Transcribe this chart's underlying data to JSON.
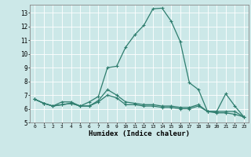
{
  "title": "",
  "xlabel": "Humidex (Indice chaleur)",
  "ylabel": "",
  "bg_color": "#cce8e8",
  "line_color": "#2e7d6e",
  "grid_color": "#ffffff",
  "xlim": [
    -0.5,
    23.5
  ],
  "ylim": [
    5,
    13.6
  ],
  "yticks": [
    5,
    6,
    7,
    8,
    9,
    10,
    11,
    12,
    13
  ],
  "xticks": [
    0,
    1,
    2,
    3,
    4,
    5,
    6,
    7,
    8,
    9,
    10,
    11,
    12,
    13,
    14,
    15,
    16,
    17,
    18,
    19,
    20,
    21,
    22,
    23
  ],
  "line1_x": [
    0,
    1,
    2,
    3,
    4,
    5,
    6,
    7,
    8,
    9,
    10,
    11,
    12,
    13,
    14,
    15,
    16,
    17,
    18,
    19,
    20,
    21,
    22,
    23
  ],
  "line1_y": [
    6.7,
    6.4,
    6.2,
    6.5,
    6.5,
    6.2,
    6.5,
    6.9,
    9.0,
    9.1,
    10.5,
    11.4,
    12.1,
    13.3,
    13.35,
    12.4,
    10.9,
    7.9,
    7.4,
    5.8,
    5.8,
    7.1,
    6.2,
    5.4
  ],
  "line2_x": [
    0,
    1,
    2,
    3,
    4,
    5,
    6,
    7,
    8,
    9,
    10,
    11,
    12,
    13,
    14,
    15,
    16,
    17,
    18,
    19,
    20,
    21,
    22,
    23
  ],
  "line2_y": [
    6.7,
    6.4,
    6.2,
    6.3,
    6.4,
    6.2,
    6.2,
    6.6,
    7.4,
    7.0,
    6.5,
    6.4,
    6.3,
    6.3,
    6.2,
    6.2,
    6.1,
    6.1,
    6.3,
    5.8,
    5.8,
    5.8,
    5.8,
    5.4
  ],
  "line3_x": [
    0,
    1,
    2,
    3,
    4,
    5,
    6,
    7,
    8,
    9,
    10,
    11,
    12,
    13,
    14,
    15,
    16,
    17,
    18,
    19,
    20,
    21,
    22,
    23
  ],
  "line3_y": [
    6.7,
    6.4,
    6.2,
    6.3,
    6.4,
    6.2,
    6.2,
    6.5,
    7.0,
    6.8,
    6.3,
    6.3,
    6.2,
    6.2,
    6.1,
    6.1,
    6.0,
    6.0,
    6.2,
    5.8,
    5.7,
    5.7,
    5.6,
    5.4
  ]
}
